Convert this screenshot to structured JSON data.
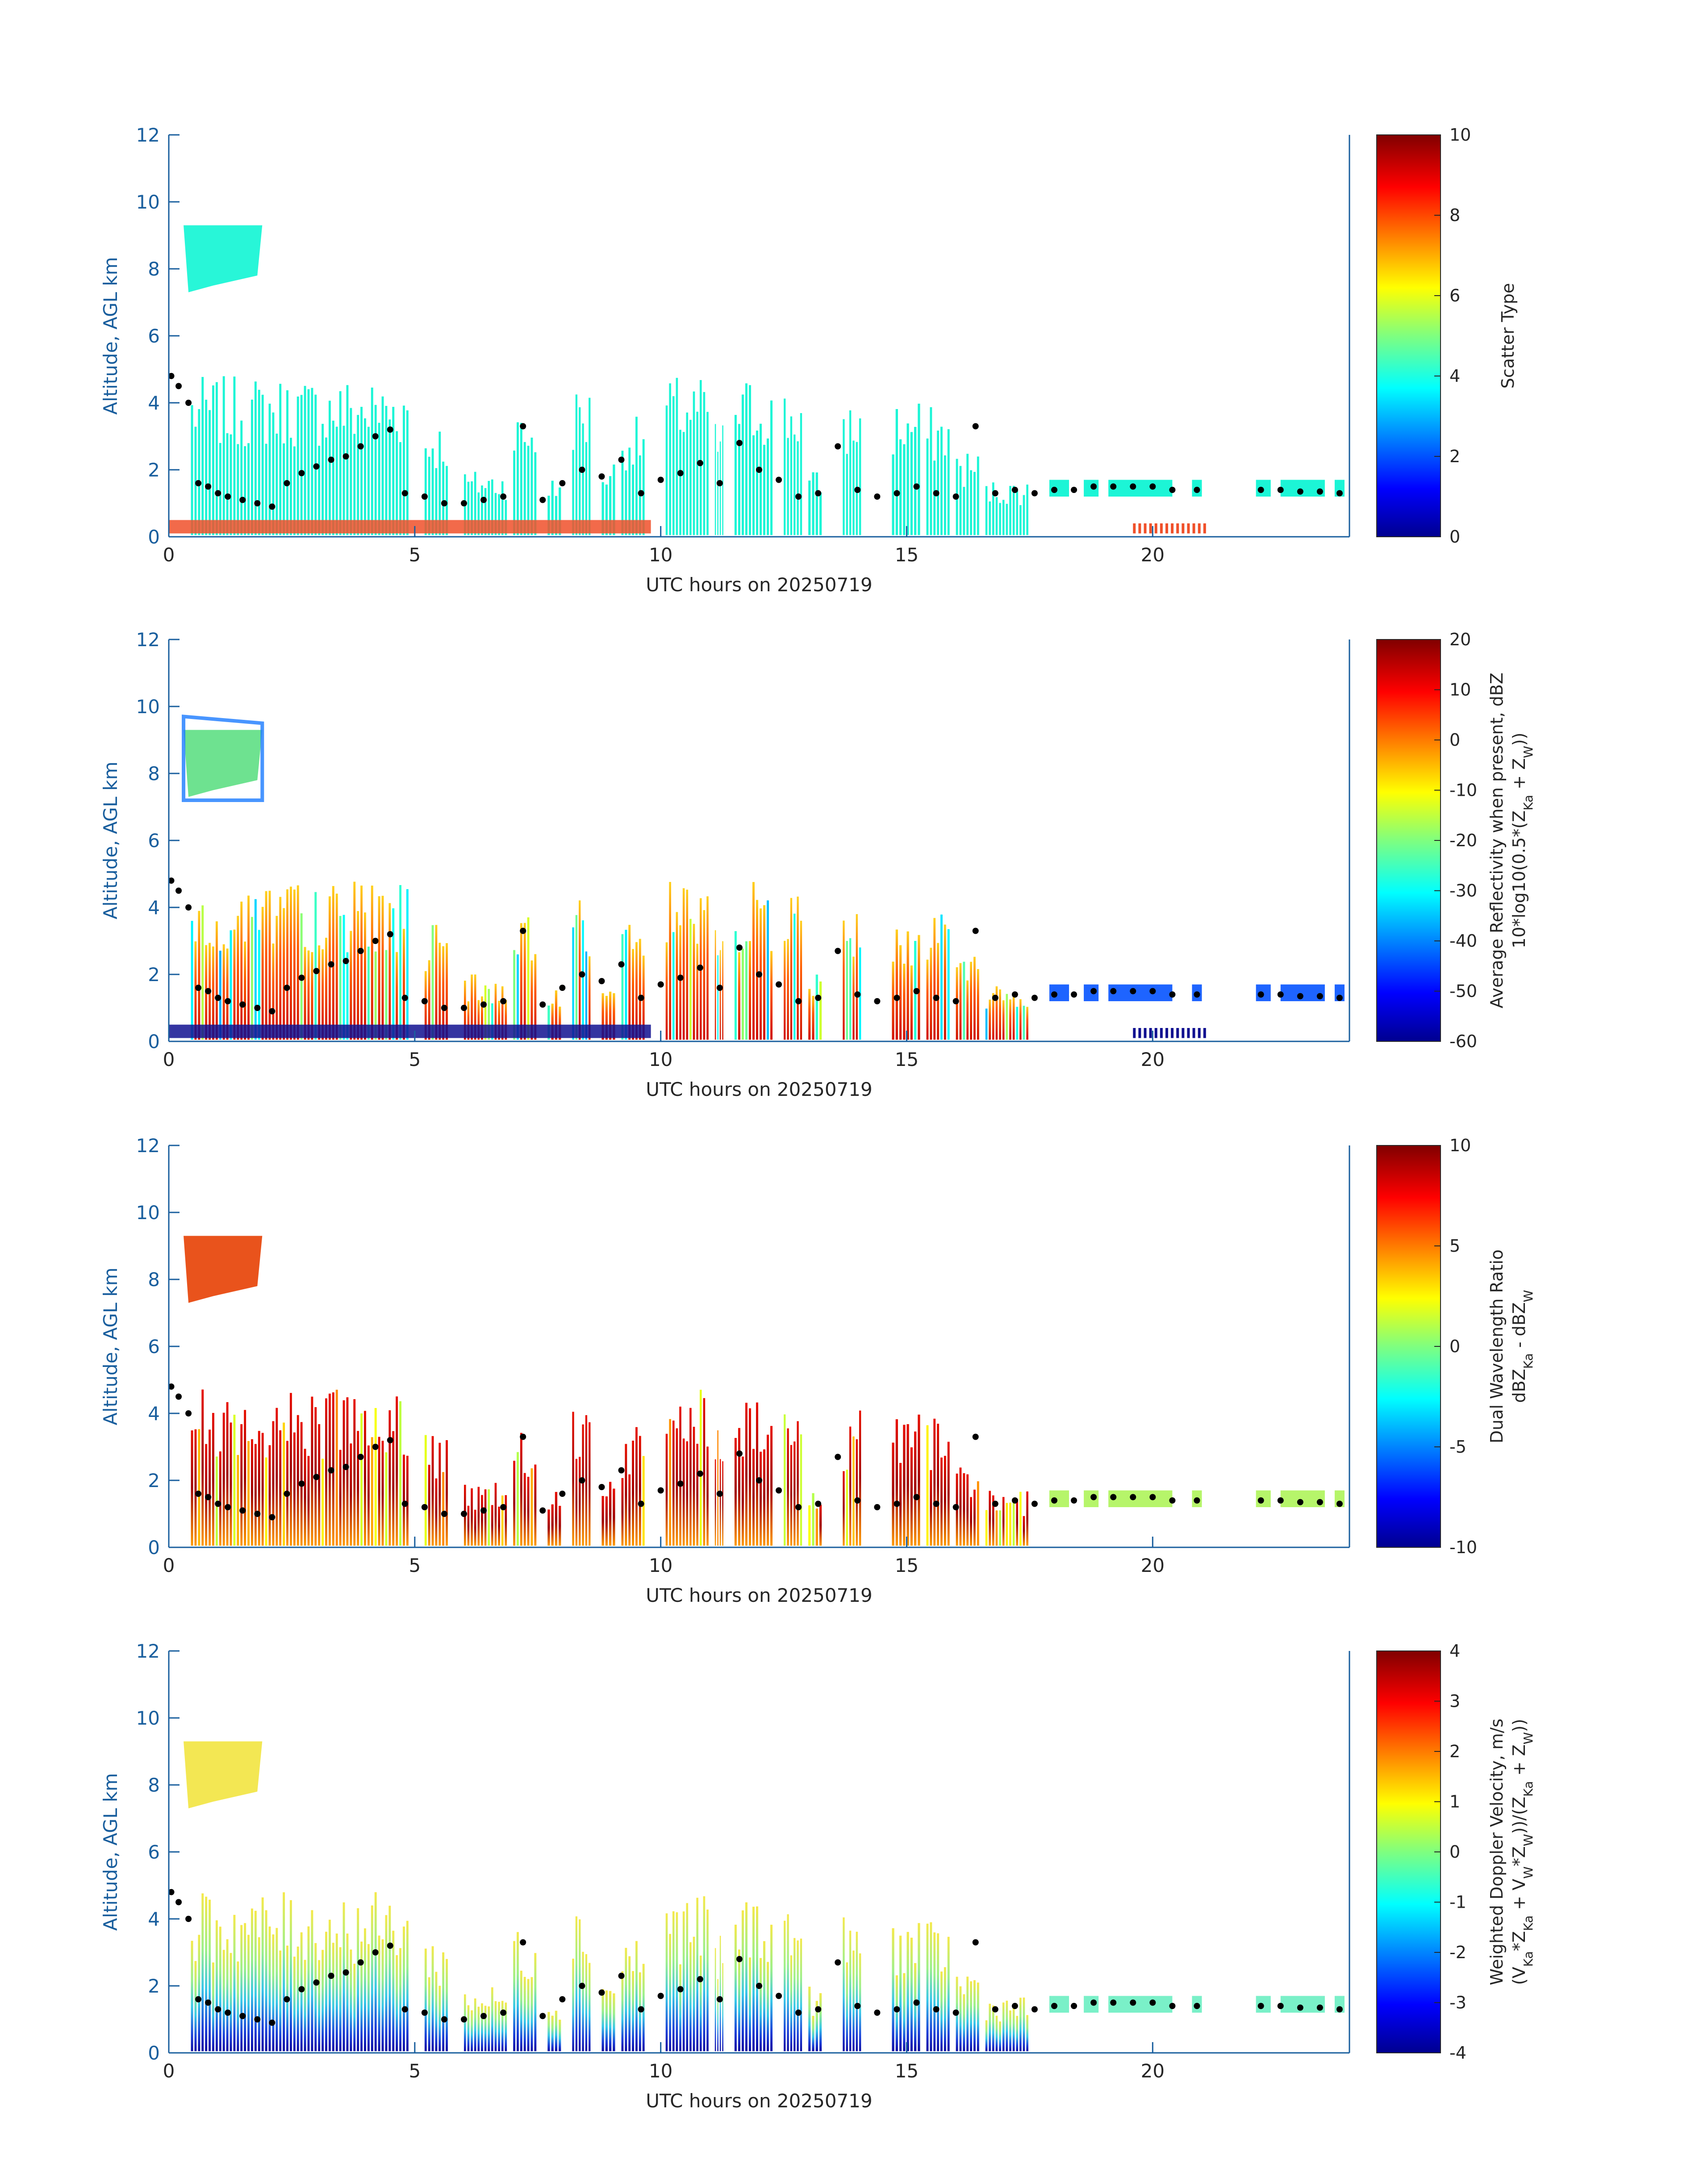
{
  "colors": {
    "axis": "#1a5f9e",
    "text": "#262626",
    "marker": "#000000",
    "scatter_fill": "#1cf5d6"
  },
  "chart_data": [
    {
      "type": "heatmap",
      "panel": "scatter-type",
      "xlabel": "UTC hours on 20250719",
      "ylabel": "Altitude, AGL km",
      "xlim": [
        0,
        24
      ],
      "ylim": [
        0,
        12
      ],
      "xticks": [
        "0",
        "5",
        "10",
        "15",
        "20"
      ],
      "yticks": [
        "0",
        "2",
        "4",
        "6",
        "8",
        "10",
        "12"
      ],
      "colorbar": {
        "label_lines": [
          "Scatter Type"
        ],
        "range": [
          0,
          10
        ],
        "ticks": [
          "0",
          "2",
          "4",
          "6",
          "8",
          "10"
        ],
        "colormap": "jet"
      },
      "fill": "cyan"
    },
    {
      "type": "heatmap",
      "panel": "average-reflectivity",
      "xlabel": "UTC hours on 20250719",
      "ylabel": "Altitude, AGL km",
      "xlim": [
        0,
        24
      ],
      "ylim": [
        0,
        12
      ],
      "xticks": [
        "0",
        "5",
        "10",
        "15",
        "20"
      ],
      "yticks": [
        "0",
        "2",
        "4",
        "6",
        "8",
        "10",
        "12"
      ],
      "colorbar": {
        "label_lines": [
          "Average Reflectivity when present, dBZ",
          "10*log10(0.5*(Z_Ka + Z_W))"
        ],
        "range": [
          -60,
          20
        ],
        "ticks": [
          "-60",
          "-50",
          "-40",
          "-30",
          "-20",
          "-10",
          "0",
          "10",
          "20"
        ],
        "colormap": "jet"
      },
      "fill": "reflectivity"
    },
    {
      "type": "heatmap",
      "panel": "dual-wavelength-ratio",
      "xlabel": "UTC hours on 20250719",
      "ylabel": "Altitude, AGL km",
      "xlim": [
        0,
        24
      ],
      "ylim": [
        0,
        12
      ],
      "xticks": [
        "0",
        "5",
        "10",
        "15",
        "20"
      ],
      "yticks": [
        "0",
        "2",
        "4",
        "6",
        "8",
        "10",
        "12"
      ],
      "colorbar": {
        "label_lines": [
          "Dual Wavelength Ratio",
          "dBZ_Ka - dBZ_W"
        ],
        "range": [
          -10,
          10
        ],
        "ticks": [
          "-10",
          "-5",
          "0",
          "5",
          "10"
        ],
        "colormap": "jet"
      },
      "fill": "dwr"
    },
    {
      "type": "heatmap",
      "panel": "weighted-doppler-velocity",
      "xlabel": "UTC hours on 20250719",
      "ylabel": "Altitude, AGL km",
      "xlim": [
        0,
        24
      ],
      "ylim": [
        0,
        12
      ],
      "xticks": [
        "0",
        "5",
        "10",
        "15",
        "20"
      ],
      "yticks": [
        "0",
        "2",
        "4",
        "6",
        "8",
        "10",
        "12"
      ],
      "colorbar": {
        "label_lines": [
          "Weighted Doppler Velocity, m/s",
          "(V_Ka*Z_Ka + V_W*Z_W))/(Z_Ka + Z_W))"
        ],
        "range": [
          -4,
          4
        ],
        "ticks": [
          "-4",
          "-3",
          "-2",
          "-1",
          "0",
          "1",
          "2",
          "3",
          "4"
        ],
        "colormap": "jet"
      },
      "fill": "velocity"
    }
  ],
  "cloud_base": {
    "x": [
      0.05,
      0.2,
      0.4,
      0.6,
      0.8,
      1.0,
      1.2,
      1.5,
      1.8,
      2.1,
      2.4,
      2.7,
      3.0,
      3.3,
      3.6,
      3.9,
      4.2,
      4.5,
      4.8,
      5.2,
      5.6,
      6.0,
      6.4,
      6.8,
      7.2,
      7.6,
      8.0,
      8.4,
      8.8,
      9.2,
      9.6,
      10.0,
      10.4,
      10.8,
      11.2,
      11.6,
      12.0,
      12.4,
      12.8,
      13.2,
      13.6,
      14.0,
      14.4,
      14.8,
      15.2,
      15.6,
      16.0,
      16.4,
      16.8,
      17.2,
      17.6,
      18.0,
      18.4,
      18.8,
      19.2,
      19.6,
      20.0,
      20.4,
      20.9,
      22.2,
      22.6,
      23.0,
      23.4,
      23.8
    ],
    "y": [
      4.8,
      4.5,
      4.0,
      1.6,
      1.5,
      1.3,
      1.2,
      1.1,
      1.0,
      0.9,
      1.6,
      1.9,
      2.1,
      2.3,
      2.4,
      2.7,
      3.0,
      3.2,
      1.3,
      1.2,
      1.0,
      1.0,
      1.1,
      1.2,
      3.3,
      1.1,
      1.6,
      2.0,
      1.8,
      2.3,
      1.3,
      1.7,
      1.9,
      2.2,
      1.6,
      2.8,
      2.0,
      1.7,
      1.2,
      1.3,
      2.7,
      1.4,
      1.2,
      1.3,
      1.5,
      1.3,
      1.2,
      3.3,
      1.3,
      1.4,
      1.3,
      1.4,
      1.4,
      1.5,
      1.5,
      1.5,
      1.5,
      1.4,
      1.4,
      1.4,
      1.4,
      1.35,
      1.35,
      1.3
    ]
  }
}
